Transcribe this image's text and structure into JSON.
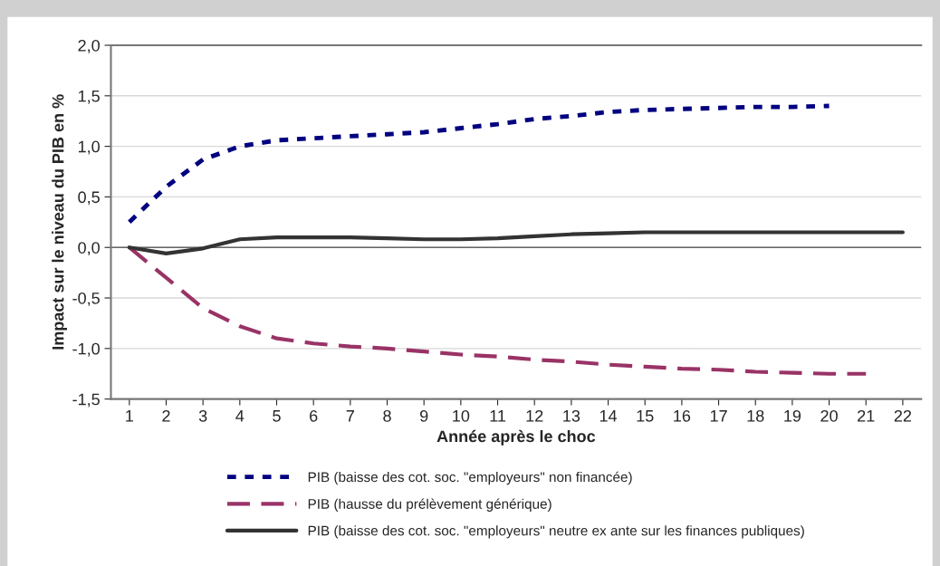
{
  "chart_data": {
    "type": "line",
    "xlabel": "Année après le choc",
    "ylabel": "Impact sur le niveau du PIB en %",
    "categories": [
      "1",
      "2",
      "3",
      "4",
      "5",
      "6",
      "7",
      "8",
      "9",
      "10",
      "11",
      "12",
      "13",
      "14",
      "15",
      "16",
      "17",
      "18",
      "19",
      "20",
      "21",
      "22"
    ],
    "ylim": [
      -1.5,
      2.0
    ],
    "yticks": [
      {
        "value": -1.5,
        "label": "-1,5"
      },
      {
        "value": -1.0,
        "label": "-1,0"
      },
      {
        "value": -0.5,
        "label": "-0,5"
      },
      {
        "value": 0,
        "label": "0,0"
      },
      {
        "value": 0.5,
        "label": "0,5"
      },
      {
        "value": 1.0,
        "label": "1,0"
      },
      {
        "value": 1.5,
        "label": "1,5"
      },
      {
        "value": 2.0,
        "label": "2,0"
      }
    ],
    "grid": "y",
    "legend": "bottom",
    "series": [
      {
        "name": "PIB (baisse des cot. soc. \"employeurs\" non financée)",
        "color": "#000080",
        "line_style": "dotted",
        "values": [
          0.25,
          0.6,
          0.87,
          1.0,
          1.06,
          1.08,
          1.1,
          1.12,
          1.14,
          1.18,
          1.22,
          1.27,
          1.3,
          1.34,
          1.36,
          1.37,
          1.38,
          1.39,
          1.39,
          1.4,
          null,
          null
        ]
      },
      {
        "name": "PIB (hausse du prélèvement générique)",
        "color": "#993366",
        "line_style": "dashed",
        "values": [
          0,
          -0.3,
          -0.6,
          -0.78,
          -0.9,
          -0.95,
          -0.98,
          -1.0,
          -1.03,
          -1.06,
          -1.08,
          -1.11,
          -1.13,
          -1.16,
          -1.18,
          -1.2,
          -1.21,
          -1.23,
          -1.24,
          -1.25,
          -1.25,
          null
        ]
      },
      {
        "name": "PIB (baisse des cot. soc. \"employeurs\" neutre ex ante sur les finances publiques)",
        "color": "#333333",
        "line_style": "solid",
        "values": [
          0,
          -0.06,
          -0.01,
          0.08,
          0.1,
          0.1,
          0.1,
          0.09,
          0.08,
          0.08,
          0.09,
          0.11,
          0.13,
          0.14,
          0.15,
          0.15,
          0.15,
          0.15,
          0.15,
          0.15,
          0.15,
          0.15
        ]
      }
    ]
  }
}
